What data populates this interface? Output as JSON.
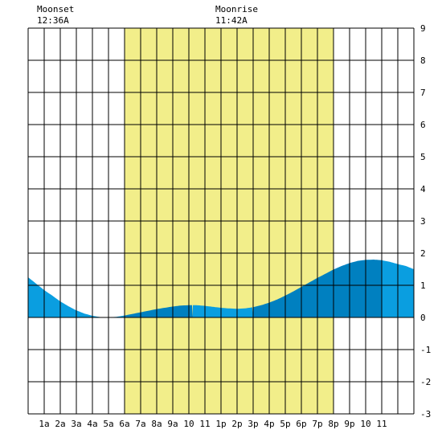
{
  "moon": {
    "moonset_label": "Moonset",
    "moonset_time": "12:36A",
    "moonrise_label": "Moonrise",
    "moonrise_time": "11:42A"
  },
  "chart_data": {
    "type": "area",
    "title": "",
    "xlabel": "",
    "ylabel": "",
    "xlim": [
      0,
      24
    ],
    "ylim": [
      -3,
      9
    ],
    "grid": true,
    "x_tick_labels": [
      "1a",
      "2a",
      "3a",
      "4a",
      "5a",
      "6a",
      "7a",
      "8a",
      "9a",
      "10",
      "11",
      "1p",
      "2p",
      "3p",
      "4p",
      "5p",
      "6p",
      "7p",
      "8p",
      "9p",
      "10",
      "11"
    ],
    "y_tick_labels": [
      "9",
      "8",
      "7",
      "6",
      "5",
      "4",
      "3",
      "2",
      "1",
      "0",
      "-1",
      "-2",
      "-3"
    ],
    "daylight": {
      "start": 6.0,
      "end": 19.0,
      "color": "#f2ee8a"
    },
    "series": [
      {
        "x": [
          0,
          0.5,
          1,
          1.5,
          2,
          2.5,
          3,
          3.5,
          4,
          4.5,
          5,
          5.5,
          6,
          6.5,
          7,
          7.5,
          8,
          8.5,
          9,
          9.5,
          10,
          10.5,
          11,
          11.5,
          12,
          12.5,
          13,
          13.5,
          14,
          14.5,
          15,
          15.5,
          16,
          16.5,
          17,
          17.5,
          18,
          18.5,
          19,
          19.5,
          20,
          20.5,
          21,
          21.5,
          22,
          22.5,
          23,
          23.5,
          24
        ],
        "y": [
          1.25,
          1.05,
          0.85,
          0.68,
          0.5,
          0.35,
          0.22,
          0.12,
          0.05,
          0.01,
          0.0,
          0.02,
          0.06,
          0.11,
          0.16,
          0.21,
          0.26,
          0.3,
          0.34,
          0.37,
          0.38,
          0.38,
          0.36,
          0.33,
          0.3,
          0.28,
          0.27,
          0.28,
          0.32,
          0.38,
          0.46,
          0.56,
          0.68,
          0.81,
          0.95,
          1.09,
          1.23,
          1.36,
          1.49,
          1.6,
          1.69,
          1.76,
          1.79,
          1.8,
          1.78,
          1.73,
          1.66,
          1.6,
          1.5
        ]
      }
    ],
    "colors": {
      "fill_light": "#0a9ee0",
      "fill_dark": "#0080c0",
      "grid": "#000000"
    }
  }
}
